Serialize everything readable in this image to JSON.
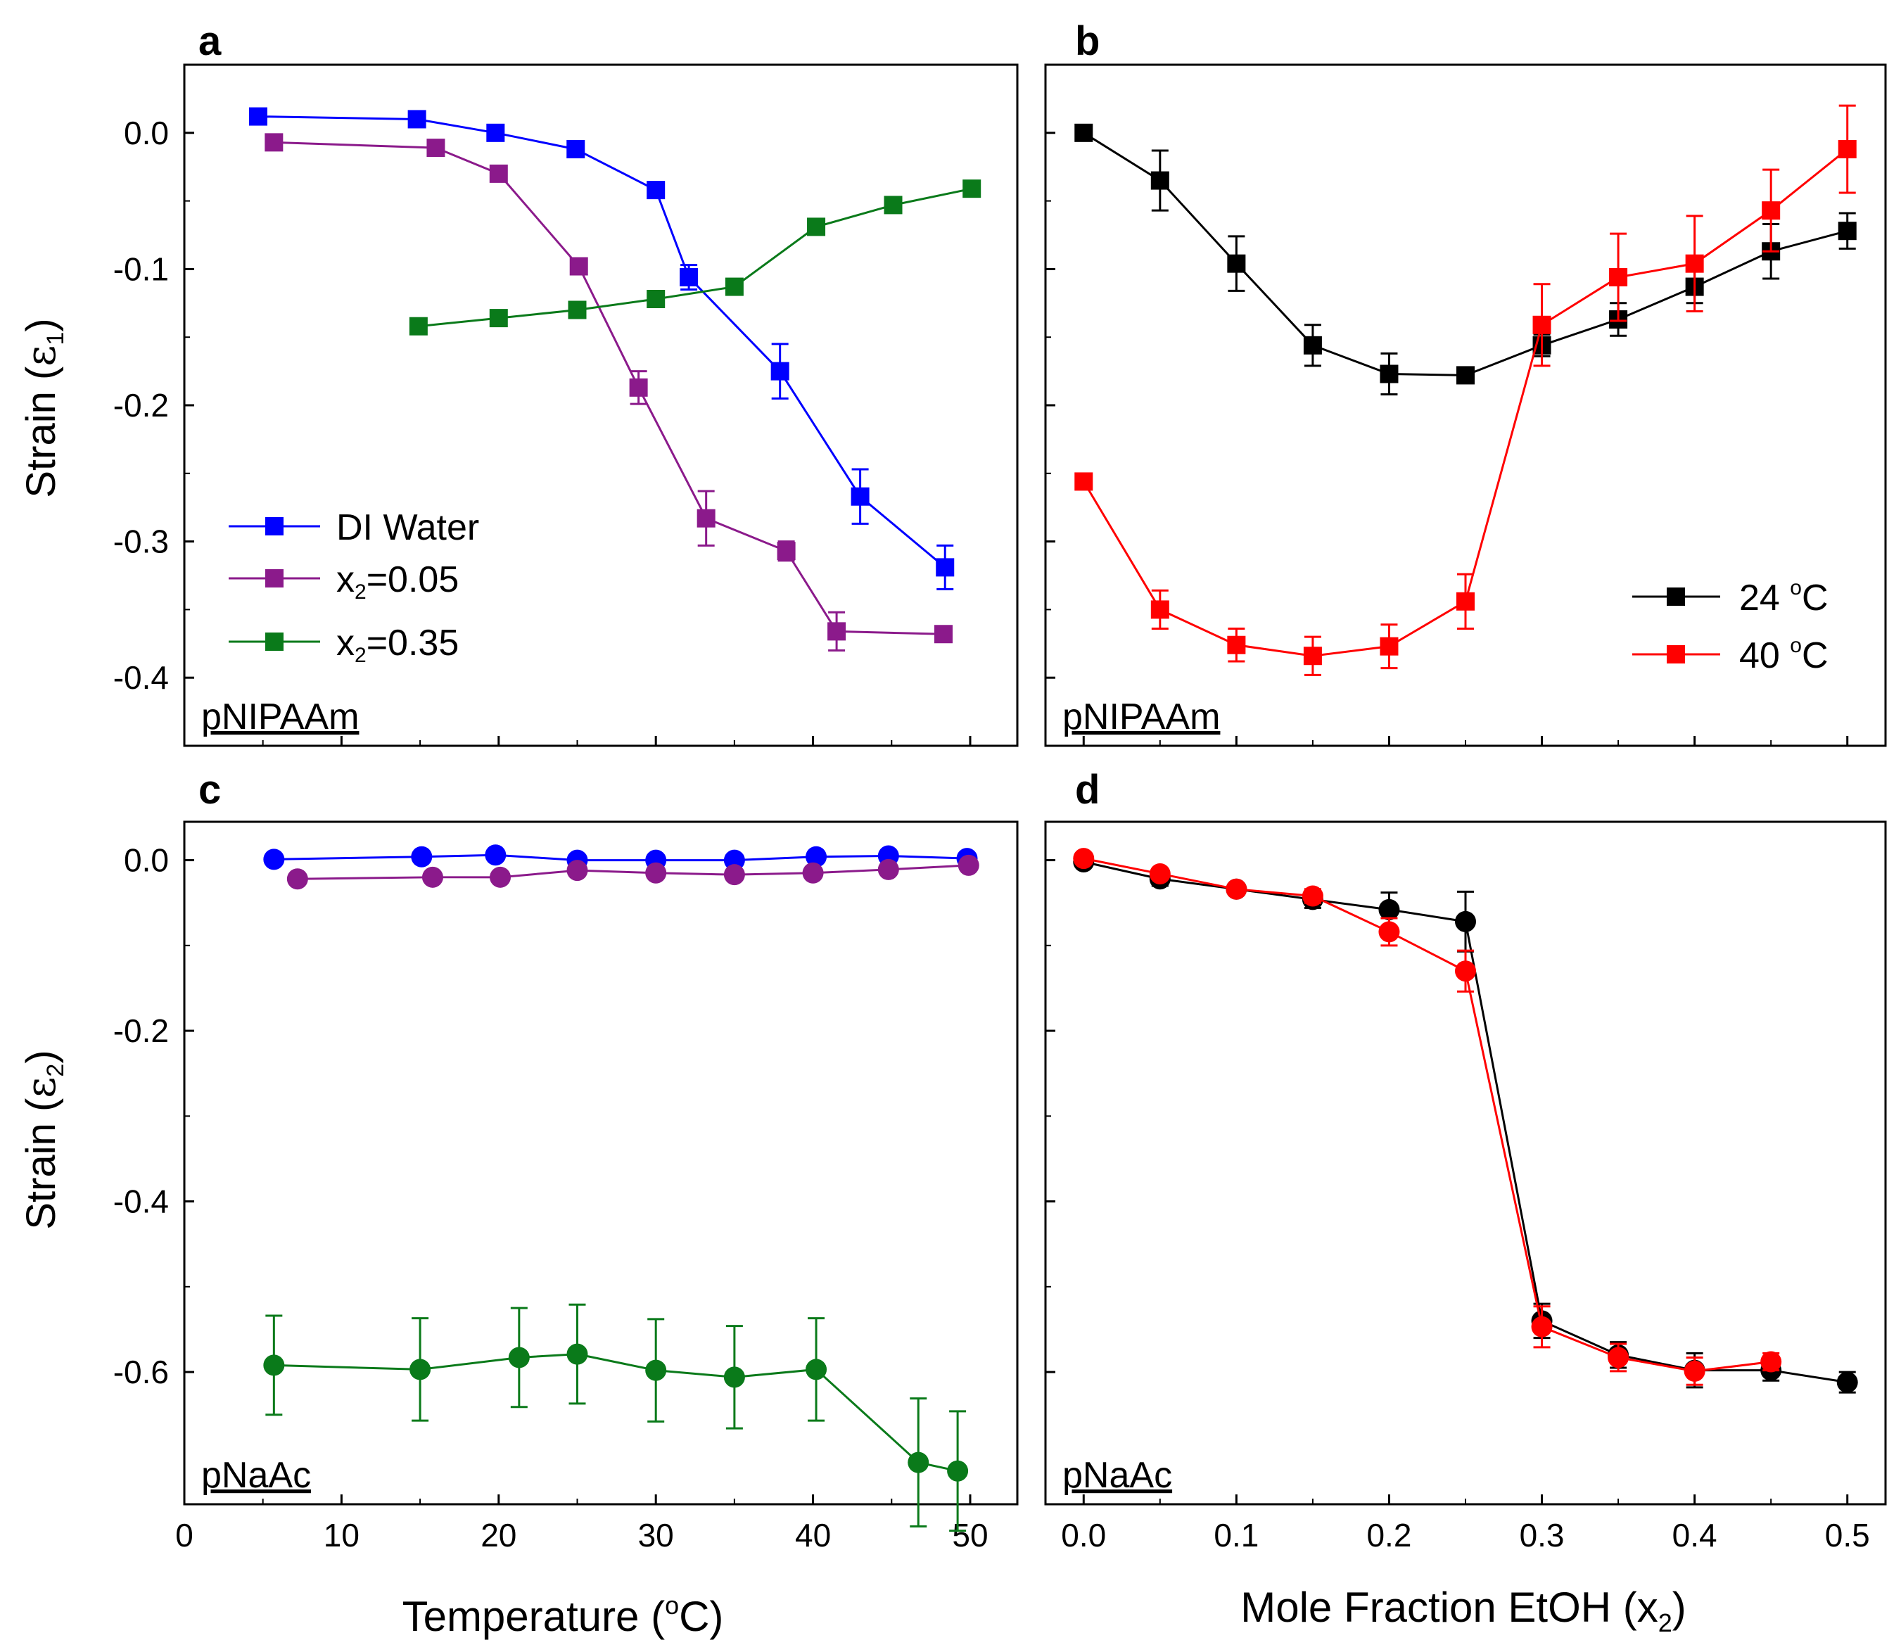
{
  "chart_data": [
    {
      "panel": "a",
      "type": "line",
      "tag": "pNIPAAm",
      "xlabel": "",
      "ylabel": "Strain (ε1)",
      "xlim": [
        0,
        53
      ],
      "ylim": [
        -0.45,
        0.05
      ],
      "xticks": [
        0,
        10,
        20,
        30,
        40,
        50
      ],
      "yticks": [
        0.0,
        -0.1,
        -0.2,
        -0.3,
        -0.4
      ],
      "xtick_labels": [
        "0",
        "10",
        "20",
        "30",
        "40",
        "50"
      ],
      "ytick_labels": [
        "0.0",
        "-0.1",
        "-0.2",
        "-0.3",
        "-0.4"
      ],
      "show_xtick_labels": false,
      "marker": "square",
      "legend": {
        "position": "bottom-left"
      },
      "series": [
        {
          "name": "DI Water",
          "color": "#0000ff",
          "x": [
            4.7,
            14.8,
            19.8,
            24.9,
            30.0,
            32.1,
            37.9,
            43.0,
            48.4
          ],
          "y": [
            0.012,
            0.01,
            0.0,
            -0.012,
            -0.042,
            -0.106,
            -0.175,
            -0.267,
            -0.319
          ],
          "err": [
            0,
            0,
            0,
            0,
            0,
            0.009,
            0.02,
            0.02,
            0.016
          ]
        },
        {
          "name": "x2=0.05",
          "color": "#8b1a8b",
          "x": [
            5.7,
            16.0,
            20.0,
            25.1,
            28.9,
            33.2,
            38.3,
            41.5,
            48.3
          ],
          "y": [
            -0.007,
            -0.011,
            -0.03,
            -0.098,
            -0.187,
            -0.283,
            -0.307,
            -0.366,
            -0.368
          ],
          "err": [
            0,
            0,
            0,
            0,
            0.012,
            0.02,
            0.007,
            0.014,
            0.005
          ]
        },
        {
          "name": "x2=0.35",
          "color": "#0a7a1a",
          "x": [
            14.9,
            20.0,
            25.0,
            30.0,
            35.0,
            40.2,
            45.1,
            50.1
          ],
          "y": [
            -0.142,
            -0.136,
            -0.13,
            -0.122,
            -0.113,
            -0.069,
            -0.053,
            -0.041
          ],
          "err": [
            0,
            0,
            0,
            0,
            0,
            0,
            0,
            0
          ]
        }
      ]
    },
    {
      "panel": "b",
      "type": "line",
      "tag": "pNIPAAm",
      "xlabel": "",
      "ylabel": "",
      "xlim": [
        -0.025,
        0.525
      ],
      "ylim": [
        -0.45,
        0.05
      ],
      "xticks": [
        0.0,
        0.1,
        0.2,
        0.3,
        0.4,
        0.5
      ],
      "yticks": [
        0.0,
        -0.1,
        -0.2,
        -0.3,
        -0.4
      ],
      "xtick_labels": [
        "0.0",
        "0.1",
        "0.2",
        "0.3",
        "0.4",
        "0.5"
      ],
      "ytick_labels": [
        "0.0",
        "-0.1",
        "-0.2",
        "-0.3",
        "-0.4"
      ],
      "show_xtick_labels": false,
      "marker": "square",
      "legend": {
        "position": "middle-right"
      },
      "series": [
        {
          "name": "24 °C",
          "color": "#000000",
          "x": [
            0.0,
            0.05,
            0.1,
            0.15,
            0.2,
            0.25,
            0.3,
            0.35,
            0.4,
            0.45,
            0.5
          ],
          "y": [
            0.0,
            -0.035,
            -0.096,
            -0.156,
            -0.177,
            -0.178,
            -0.156,
            -0.137,
            -0.113,
            -0.087,
            -0.072
          ],
          "err": [
            0,
            0.022,
            0.02,
            0.015,
            0.015,
            0,
            0.008,
            0.012,
            0.012,
            0.02,
            0.013
          ]
        },
        {
          "name": "40 °C",
          "color": "#ff0000",
          "x": [
            0.0,
            0.05,
            0.1,
            0.15,
            0.2,
            0.25,
            0.3,
            0.35,
            0.4,
            0.45,
            0.5
          ],
          "y": [
            -0.256,
            -0.35,
            -0.376,
            -0.384,
            -0.377,
            -0.344,
            -0.141,
            -0.106,
            -0.096,
            -0.057,
            -0.012
          ],
          "err": [
            0,
            0.014,
            0.012,
            0.014,
            0.016,
            0.02,
            0.03,
            0.032,
            0.035,
            0.03,
            0.032
          ]
        }
      ]
    },
    {
      "panel": "c",
      "type": "line",
      "tag": "pNaAc",
      "xlabel": "Temperature (°C)",
      "ylabel": "Strain (ε2)",
      "xlim": [
        0,
        53
      ],
      "ylim": [
        -0.755,
        0.045
      ],
      "xticks": [
        0,
        10,
        20,
        30,
        40,
        50
      ],
      "yticks": [
        0.0,
        -0.2,
        -0.4,
        -0.6
      ],
      "xtick_labels": [
        "0",
        "10",
        "20",
        "30",
        "40",
        "50"
      ],
      "ytick_labels": [
        "0.0",
        "-0.2",
        "-0.4",
        "-0.6"
      ],
      "show_xtick_labels": true,
      "marker": "circle",
      "series": [
        {
          "name": "DI Water",
          "color": "#0000ff",
          "x": [
            5.7,
            15.1,
            19.8,
            25.0,
            30.0,
            35.0,
            40.2,
            44.8,
            49.8
          ],
          "y": [
            0.001,
            0.004,
            0.006,
            0.0,
            0.0,
            0.0,
            0.004,
            0.005,
            0.002
          ],
          "err": [
            0,
            0,
            0,
            0,
            0,
            0,
            0,
            0,
            0
          ]
        },
        {
          "name": "x2=0.05",
          "color": "#8b1a8b",
          "x": [
            7.2,
            15.8,
            20.1,
            25.0,
            30.0,
            35.0,
            40.0,
            44.8,
            49.9
          ],
          "y": [
            -0.022,
            -0.02,
            -0.02,
            -0.012,
            -0.015,
            -0.017,
            -0.015,
            -0.011,
            -0.006
          ],
          "err": [
            0,
            0,
            0,
            0,
            0,
            0,
            0,
            0,
            0
          ]
        },
        {
          "name": "x2=0.35",
          "color": "#0a7a1a",
          "x": [
            5.7,
            15.0,
            21.3,
            25.0,
            30.0,
            35.0,
            40.2,
            46.7,
            49.2
          ],
          "y": [
            -0.592,
            -0.597,
            -0.583,
            -0.579,
            -0.598,
            -0.606,
            -0.597,
            -0.706,
            -0.716
          ],
          "err": [
            0.058,
            0.06,
            0.058,
            0.058,
            0.06,
            0.06,
            0.06,
            0.075,
            0.07
          ]
        }
      ]
    },
    {
      "panel": "d",
      "type": "line",
      "tag": "pNaAc",
      "xlabel": "Mole Fraction EtOH (x2)",
      "ylabel": "",
      "xlim": [
        -0.025,
        0.525
      ],
      "ylim": [
        -0.755,
        0.045
      ],
      "xticks": [
        0.0,
        0.1,
        0.2,
        0.3,
        0.4,
        0.5
      ],
      "yticks": [
        0.0,
        -0.2,
        -0.4,
        -0.6
      ],
      "xtick_labels": [
        "0.0",
        "0.1",
        "0.2",
        "0.3",
        "0.4",
        "0.5"
      ],
      "ytick_labels": [
        "0.0",
        "-0.2",
        "-0.4",
        "-0.6"
      ],
      "show_xtick_labels": true,
      "marker": "circle",
      "series": [
        {
          "name": "24 °C",
          "color": "#000000",
          "x": [
            0.0,
            0.05,
            0.1,
            0.15,
            0.2,
            0.25,
            0.3,
            0.35,
            0.4,
            0.45,
            0.5
          ],
          "y": [
            -0.002,
            -0.022,
            -0.034,
            -0.046,
            -0.058,
            -0.072,
            -0.54,
            -0.58,
            -0.598,
            -0.598,
            -0.612
          ],
          "err": [
            0,
            0.008,
            0.006,
            0.01,
            0.02,
            0.035,
            0.02,
            0.015,
            0.02,
            0.012,
            0.012
          ]
        },
        {
          "name": "40 °C",
          "color": "#ff0000",
          "x": [
            0.0,
            0.05,
            0.1,
            0.15,
            0.2,
            0.25,
            0.3,
            0.35,
            0.4,
            0.45
          ],
          "y": [
            0.002,
            -0.016,
            -0.034,
            -0.042,
            -0.084,
            -0.13,
            -0.547,
            -0.583,
            -0.599,
            -0.588
          ],
          "err": [
            0,
            0.006,
            0.006,
            0.008,
            0.016,
            0.024,
            0.024,
            0.016,
            0.016,
            0.01
          ]
        }
      ]
    }
  ],
  "legends": {
    "a": [
      {
        "label_main": "DI Water",
        "label_sub": "",
        "label_rest": "",
        "color": "#0000ff"
      },
      {
        "label_main": "x",
        "label_sub": "2",
        "label_rest": "=0.05",
        "color": "#8b1a8b"
      },
      {
        "label_main": "x",
        "label_sub": "2",
        "label_rest": "=0.35",
        "color": "#0a7a1a"
      }
    ],
    "b": [
      {
        "label_main": "24 ",
        "label_sup": "o",
        "label_rest": "C",
        "color": "#000000"
      },
      {
        "label_main": "40 ",
        "label_sup": "o",
        "label_rest": "C",
        "color": "#ff0000"
      }
    ]
  },
  "labels": {
    "ylabel_top": {
      "main": "Strain (",
      "greek": "ε",
      "sub": "1",
      "end": ")"
    },
    "ylabel_bottom": {
      "main": "Strain (",
      "greek": "ε",
      "sub": "2",
      "end": ")"
    },
    "xlabel_left": {
      "main": "Temperature (",
      "sup": "o",
      "end": "C)"
    },
    "xlabel_right": {
      "main": "Mole Fraction EtOH (x",
      "sub": "2",
      "end": ")"
    }
  },
  "panel_letters": [
    "a",
    "b",
    "c",
    "d"
  ]
}
